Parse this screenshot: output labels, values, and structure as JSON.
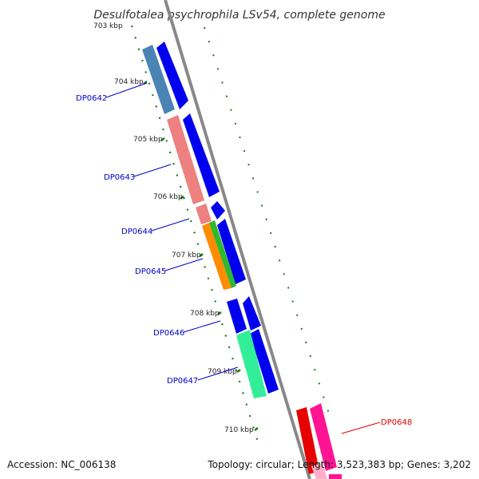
{
  "title": "Desulfotalea psychrophila LSv54, complete genome",
  "footer": {
    "accession": "Accession: NC_006138",
    "summary": "Topology: circular; Length: 3,523,383 bp; Genes: 3,202"
  },
  "ticks": [
    {
      "label": "703 kbp",
      "mb": 703
    },
    {
      "label": "704 kbp",
      "mb": 704
    },
    {
      "label": "705 kbp",
      "mb": 705
    },
    {
      "label": "706 kbp",
      "mb": 706
    },
    {
      "label": "707 kbp",
      "mb": 707
    },
    {
      "label": "708 kbp",
      "mb": 708
    },
    {
      "label": "709 kbp",
      "mb": 709
    },
    {
      "label": "710 kbp",
      "mb": 710
    }
  ],
  "genes": [
    {
      "label": "DP0642",
      "color": "#1a1acc",
      "strand": "reverse"
    },
    {
      "label": "DP0643",
      "color": "#1a1acc",
      "strand": "reverse"
    },
    {
      "label": "DP0644",
      "color": "#1a1acc",
      "strand": "reverse"
    },
    {
      "label": "DP0645",
      "color": "#1a1acc",
      "strand": "reverse"
    },
    {
      "label": "DP0646",
      "color": "#1a1acc",
      "strand": "reverse"
    },
    {
      "label": "DP0647",
      "color": "#1a1acc",
      "strand": "reverse"
    },
    {
      "label": "DP0648",
      "color": "#e60000",
      "strand": "forward"
    }
  ],
  "colors": {
    "backbone": "#888888",
    "reverse_cds": "#0000ee",
    "forward_cds": "#ff1493",
    "tick_dots": "#1f7a1f"
  }
}
